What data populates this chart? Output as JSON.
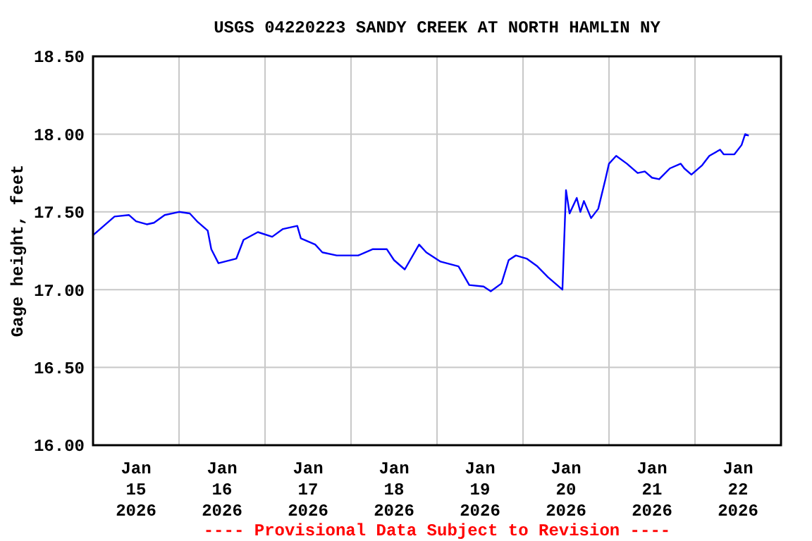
{
  "chart_data": {
    "type": "line",
    "title": "USGS 04220223 SANDY CREEK AT NORTH HAMLIN NY",
    "ylabel": "Gage height, feet",
    "annotations": [
      "---- Provisional Data Subject to Revision ----"
    ],
    "xlim": [
      "2026-01-15T00:00",
      "2026-01-23T00:00"
    ],
    "xticks": [
      {
        "value": "2026-01-15T12:00",
        "label": "Jan\n15\n2026"
      },
      {
        "value": "2026-01-16T12:00",
        "label": "Jan\n16\n2026"
      },
      {
        "value": "2026-01-17T12:00",
        "label": "Jan\n17\n2026"
      },
      {
        "value": "2026-01-18T12:00",
        "label": "Jan\n18\n2026"
      },
      {
        "value": "2026-01-19T12:00",
        "label": "Jan\n19\n2026"
      },
      {
        "value": "2026-01-20T12:00",
        "label": "Jan\n20\n2026"
      },
      {
        "value": "2026-01-21T12:00",
        "label": "Jan\n21\n2026"
      },
      {
        "value": "2026-01-22T12:00",
        "label": "Jan\n22\n2026"
      },
      {
        "value": "2026-01-16T00:00",
        "label": null
      },
      {
        "value": "2026-01-17T00:00",
        "label": null
      },
      {
        "value": "2026-01-18T00:00",
        "label": null
      },
      {
        "value": "2026-01-19T00:00",
        "label": null
      },
      {
        "value": "2026-01-20T00:00",
        "label": null
      },
      {
        "value": "2026-01-21T00:00",
        "label": null
      },
      {
        "value": "2026-01-22T00:00",
        "label": null
      }
    ],
    "ylim": [
      16,
      18.5
    ],
    "yticks": [
      {
        "value": 16,
        "label": "16.00"
      },
      {
        "value": 16.5,
        "label": "16.50"
      },
      {
        "value": 17,
        "label": "17.00"
      },
      {
        "value": 17.5,
        "label": "17.50"
      },
      {
        "value": 18,
        "label": "18.00"
      },
      {
        "value": 18.5,
        "label": "18.50"
      }
    ],
    "grid": true,
    "x": [
      "2026-01-15T00:00",
      "2026-01-15T03:00",
      "2026-01-15T06:00",
      "2026-01-15T10:00",
      "2026-01-15T12:00",
      "2026-01-15T15:00",
      "2026-01-15T17:00",
      "2026-01-15T20:00",
      "2026-01-16T00:00",
      "2026-01-16T03:00",
      "2026-01-16T05:00",
      "2026-01-16T08:00",
      "2026-01-16T09:00",
      "2026-01-16T11:00",
      "2026-01-16T16:00",
      "2026-01-16T18:00",
      "2026-01-16T22:00",
      "2026-01-17T02:00",
      "2026-01-17T05:00",
      "2026-01-17T09:00",
      "2026-01-17T10:00",
      "2026-01-17T14:00",
      "2026-01-17T16:00",
      "2026-01-17T20:00",
      "2026-01-18T02:00",
      "2026-01-18T06:00",
      "2026-01-18T10:00",
      "2026-01-18T12:00",
      "2026-01-18T15:00",
      "2026-01-18T19:00",
      "2026-01-18T21:00",
      "2026-01-19T01:00",
      "2026-01-19T06:00",
      "2026-01-19T09:00",
      "2026-01-19T13:00",
      "2026-01-19T15:00",
      "2026-01-19T18:00",
      "2026-01-19T20:00",
      "2026-01-19T22:00",
      "2026-01-20T01:00",
      "2026-01-20T04:00",
      "2026-01-20T07:00",
      "2026-01-20T11:00",
      "2026-01-20T12:00",
      "2026-01-20T13:00",
      "2026-01-20T15:00",
      "2026-01-20T16:00",
      "2026-01-20T17:00",
      "2026-01-20T19:00",
      "2026-01-20T21:00",
      "2026-01-20T23:00",
      "2026-01-21T00:00",
      "2026-01-21T02:00",
      "2026-01-21T05:00",
      "2026-01-21T08:00",
      "2026-01-21T10:00",
      "2026-01-21T12:00",
      "2026-01-21T14:00",
      "2026-01-21T17:00",
      "2026-01-21T20:00",
      "2026-01-21T21:00",
      "2026-01-21T23:00",
      "2026-01-22T02:00",
      "2026-01-22T04:00",
      "2026-01-22T07:00",
      "2026-01-22T08:00",
      "2026-01-22T11:00",
      "2026-01-22T13:00",
      "2026-01-22T14:00",
      "2026-01-22T15:00"
    ],
    "series": [
      {
        "color": "#0000ff",
        "values": [
          17.35,
          17.41,
          17.47,
          17.48,
          17.44,
          17.42,
          17.43,
          17.48,
          17.5,
          17.49,
          17.44,
          17.38,
          17.26,
          17.17,
          17.2,
          17.32,
          17.37,
          17.34,
          17.39,
          17.41,
          17.33,
          17.29,
          17.24,
          17.22,
          17.22,
          17.26,
          17.26,
          17.19,
          17.13,
          17.29,
          17.24,
          17.18,
          17.15,
          17.03,
          17.02,
          16.99,
          17.04,
          17.19,
          17.22,
          17.2,
          17.15,
          17.08,
          17.0,
          17.64,
          17.49,
          17.59,
          17.5,
          17.57,
          17.46,
          17.52,
          17.71,
          17.81,
          17.86,
          17.81,
          17.75,
          17.76,
          17.72,
          17.71,
          17.78,
          17.81,
          17.78,
          17.74,
          17.8,
          17.86,
          17.9,
          17.87,
          17.87,
          17.93,
          18.0,
          17.99
        ]
      }
    ]
  }
}
